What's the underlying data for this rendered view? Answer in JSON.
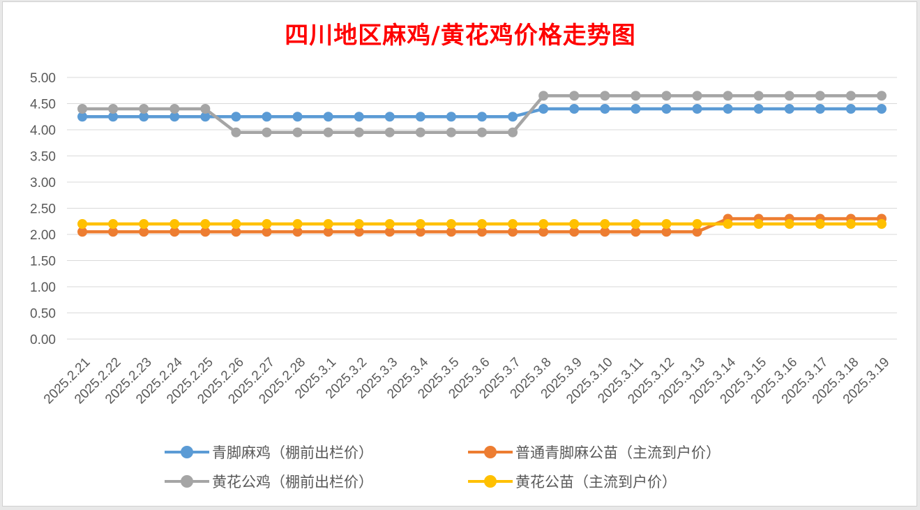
{
  "chart_data": {
    "type": "line",
    "title": "四川地区麻鸡/黄花鸡价格走势图",
    "xlabel": "",
    "ylabel": "",
    "ylim": [
      0,
      5
    ],
    "ytick_step": 0.5,
    "grid": true,
    "legend_placement": "bottom",
    "categories": [
      "2025.2.21",
      "2025.2.22",
      "2025.2.23",
      "2025.2.24",
      "2025.2.25",
      "2025.2.26",
      "2025.2.27",
      "2025.2.28",
      "2025.3.1",
      "2025.3.2",
      "2025.3.3",
      "2025.3.4",
      "2025.3.5",
      "2025.3.6",
      "2025.3.7",
      "2025.3.8",
      "2025.3.9",
      "2025.3.10",
      "2025.3.11",
      "2025.3.12",
      "2025.3.13",
      "2025.3.14",
      "2025.3.15",
      "2025.3.16",
      "2025.3.17",
      "2025.3.18",
      "2025.3.19"
    ],
    "series": [
      {
        "name": "青脚麻鸡（棚前出栏价）",
        "color": "#5b9bd5",
        "values": [
          4.25,
          4.25,
          4.25,
          4.25,
          4.25,
          4.25,
          4.25,
          4.25,
          4.25,
          4.25,
          4.25,
          4.25,
          4.25,
          4.25,
          4.25,
          4.4,
          4.4,
          4.4,
          4.4,
          4.4,
          4.4,
          4.4,
          4.4,
          4.4,
          4.4,
          4.4,
          4.4
        ]
      },
      {
        "name": "普通青脚麻公苗（主流到户价）",
        "color": "#ed7d31",
        "values": [
          2.05,
          2.05,
          2.05,
          2.05,
          2.05,
          2.05,
          2.05,
          2.05,
          2.05,
          2.05,
          2.05,
          2.05,
          2.05,
          2.05,
          2.05,
          2.05,
          2.05,
          2.05,
          2.05,
          2.05,
          2.05,
          2.3,
          2.3,
          2.3,
          2.3,
          2.3,
          2.3
        ]
      },
      {
        "name": "黄花公鸡（棚前出栏价）",
        "color": "#a5a5a5",
        "values": [
          4.4,
          4.4,
          4.4,
          4.4,
          4.4,
          3.95,
          3.95,
          3.95,
          3.95,
          3.95,
          3.95,
          3.95,
          3.95,
          3.95,
          3.95,
          4.65,
          4.65,
          4.65,
          4.65,
          4.65,
          4.65,
          4.65,
          4.65,
          4.65,
          4.65,
          4.65,
          4.65
        ]
      },
      {
        "name": "黄花公苗（主流到户价）",
        "color": "#ffc000",
        "values": [
          2.2,
          2.2,
          2.2,
          2.2,
          2.2,
          2.2,
          2.2,
          2.2,
          2.2,
          2.2,
          2.2,
          2.2,
          2.2,
          2.2,
          2.2,
          2.2,
          2.2,
          2.2,
          2.2,
          2.2,
          2.2,
          2.2,
          2.2,
          2.2,
          2.2,
          2.2,
          2.2
        ]
      }
    ]
  }
}
